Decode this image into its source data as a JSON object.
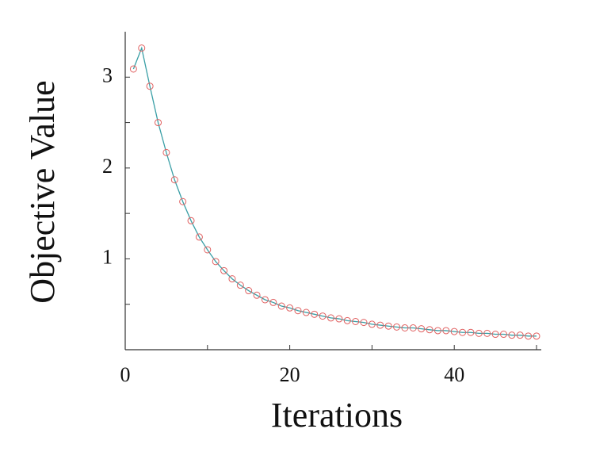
{
  "chart_data": {
    "type": "line",
    "xlabel": "Iterations",
    "ylabel": "Objective Value",
    "x": [
      1,
      2,
      3,
      4,
      5,
      6,
      7,
      8,
      9,
      10,
      11,
      12,
      13,
      14,
      15,
      16,
      17,
      18,
      19,
      20,
      21,
      22,
      23,
      24,
      25,
      26,
      27,
      28,
      29,
      30,
      31,
      32,
      33,
      34,
      35,
      36,
      37,
      38,
      39,
      40,
      41,
      42,
      43,
      44,
      45,
      46,
      47,
      48,
      49,
      50
    ],
    "series": [
      {
        "color": "#3a9fa6",
        "marker_color": "#e06060",
        "values": [
          3.09,
          3.32,
          2.9,
          2.5,
          2.17,
          1.87,
          1.63,
          1.42,
          1.24,
          1.1,
          0.97,
          0.87,
          0.78,
          0.71,
          0.65,
          0.6,
          0.55,
          0.52,
          0.48,
          0.46,
          0.43,
          0.41,
          0.39,
          0.37,
          0.35,
          0.34,
          0.32,
          0.31,
          0.3,
          0.28,
          0.27,
          0.26,
          0.25,
          0.24,
          0.24,
          0.23,
          0.22,
          0.21,
          0.21,
          0.2,
          0.19,
          0.19,
          0.18,
          0.18,
          0.17,
          0.17,
          0.16,
          0.16,
          0.15,
          0.15
        ]
      }
    ],
    "xlim": [
      0,
      50
    ],
    "xticks": [
      0,
      20,
      40
    ],
    "xminorticks": [
      10,
      30,
      50
    ],
    "ylim": [
      0,
      3.5
    ],
    "yticks": [
      1,
      2,
      3
    ],
    "yminorticks": [
      0.5,
      1.5,
      2.5
    ]
  }
}
